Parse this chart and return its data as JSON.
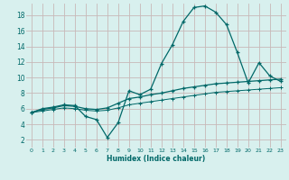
{
  "xlabel": "Humidex (Indice chaleur)",
  "background_color": "#d8f0ee",
  "grid_color": "#c8b8b8",
  "line_color": "#006868",
  "xlim": [
    -0.5,
    23.5
  ],
  "ylim": [
    1,
    19.5
  ],
  "yticks": [
    2,
    4,
    6,
    8,
    10,
    12,
    14,
    16,
    18
  ],
  "xticks": [
    0,
    1,
    2,
    3,
    4,
    5,
    6,
    7,
    8,
    9,
    10,
    11,
    12,
    13,
    14,
    15,
    16,
    17,
    18,
    19,
    20,
    21,
    22,
    23
  ],
  "curve1_x": [
    0,
    1,
    2,
    3,
    4,
    5,
    6,
    7,
    8,
    9,
    10,
    11,
    12,
    13,
    14,
    15,
    16,
    17,
    18,
    19,
    20,
    21,
    22,
    23
  ],
  "curve1_y": [
    5.5,
    6.0,
    6.2,
    6.5,
    6.4,
    5.0,
    4.6,
    2.3,
    4.2,
    8.3,
    7.8,
    8.5,
    11.8,
    14.2,
    17.2,
    19.0,
    19.2,
    18.4,
    16.8,
    13.2,
    9.3,
    11.9,
    10.2,
    9.5
  ],
  "curve2_x": [
    0,
    1,
    2,
    3,
    4,
    5,
    6,
    7,
    8,
    9,
    10,
    11,
    12,
    13,
    14,
    15,
    16,
    17,
    18,
    19,
    20,
    21,
    22,
    23
  ],
  "curve2_y": [
    5.5,
    5.9,
    6.1,
    6.4,
    6.3,
    6.0,
    5.9,
    6.1,
    6.7,
    7.3,
    7.5,
    7.8,
    8.0,
    8.3,
    8.6,
    8.8,
    9.0,
    9.2,
    9.3,
    9.4,
    9.5,
    9.6,
    9.7,
    9.8
  ],
  "curve3_x": [
    0,
    1,
    2,
    3,
    4,
    5,
    6,
    7,
    8,
    9,
    10,
    11,
    12,
    13,
    14,
    15,
    16,
    17,
    18,
    19,
    20,
    21,
    22,
    23
  ],
  "curve3_y": [
    5.5,
    5.7,
    5.9,
    6.1,
    6.0,
    5.8,
    5.7,
    5.8,
    6.1,
    6.5,
    6.7,
    6.9,
    7.1,
    7.3,
    7.5,
    7.7,
    7.9,
    8.1,
    8.2,
    8.3,
    8.4,
    8.5,
    8.6,
    8.7
  ]
}
